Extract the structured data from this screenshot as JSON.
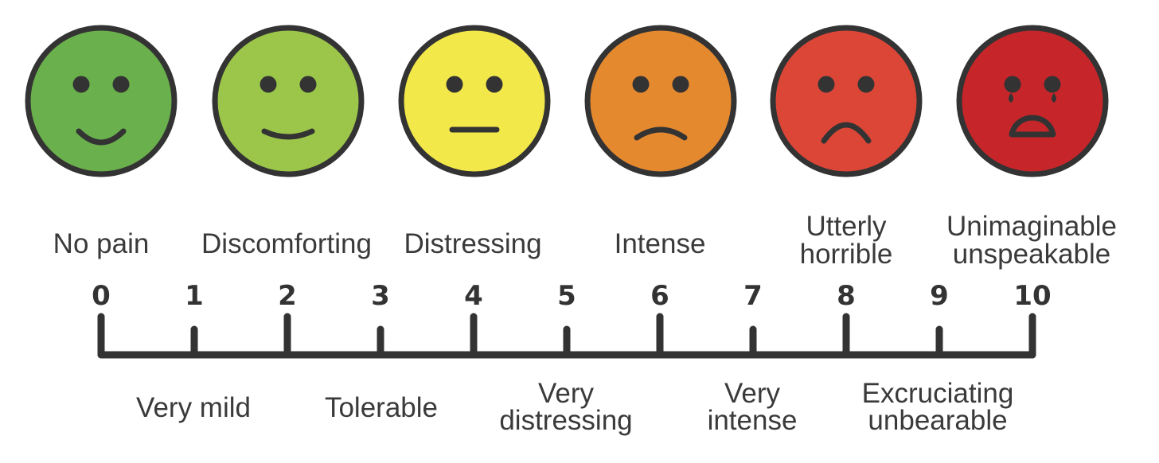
{
  "faces": [
    {
      "value": 0,
      "label": [
        "No pain"
      ],
      "fill": "#6ab04c",
      "expression": "happy"
    },
    {
      "value": 2,
      "label": [
        "Discomforting"
      ],
      "fill": "#9cc64a",
      "expression": "slight-smile"
    },
    {
      "value": 4,
      "label": [
        "Distressing"
      ],
      "fill": "#f3e84a",
      "expression": "neutral"
    },
    {
      "value": 6,
      "label": [
        "Intense"
      ],
      "fill": "#e5892f",
      "expression": "slight-frown"
    },
    {
      "value": 8,
      "label": [
        "Utterly",
        "horrible"
      ],
      "fill": "#dc4637",
      "expression": "sad"
    },
    {
      "value": 10,
      "label": [
        "Unimaginable",
        "unspeakable"
      ],
      "fill": "#c6262a",
      "expression": "crying"
    }
  ],
  "ticks": [
    "0",
    "1",
    "2",
    "3",
    "4",
    "5",
    "6",
    "7",
    "8",
    "9",
    "10"
  ],
  "odd_labels": [
    {
      "value": 1,
      "label": [
        "Very mild"
      ]
    },
    {
      "value": 3,
      "label": [
        "Tolerable"
      ]
    },
    {
      "value": 5,
      "label": [
        "Very",
        "distressing"
      ]
    },
    {
      "value": 7,
      "label": [
        "Very",
        "intense"
      ]
    },
    {
      "value": 9,
      "label": [
        "Excruciating",
        "unbearable"
      ]
    }
  ],
  "colors": {
    "outline": "#333333",
    "text": "#3a3a3a",
    "tear": "#333333"
  }
}
